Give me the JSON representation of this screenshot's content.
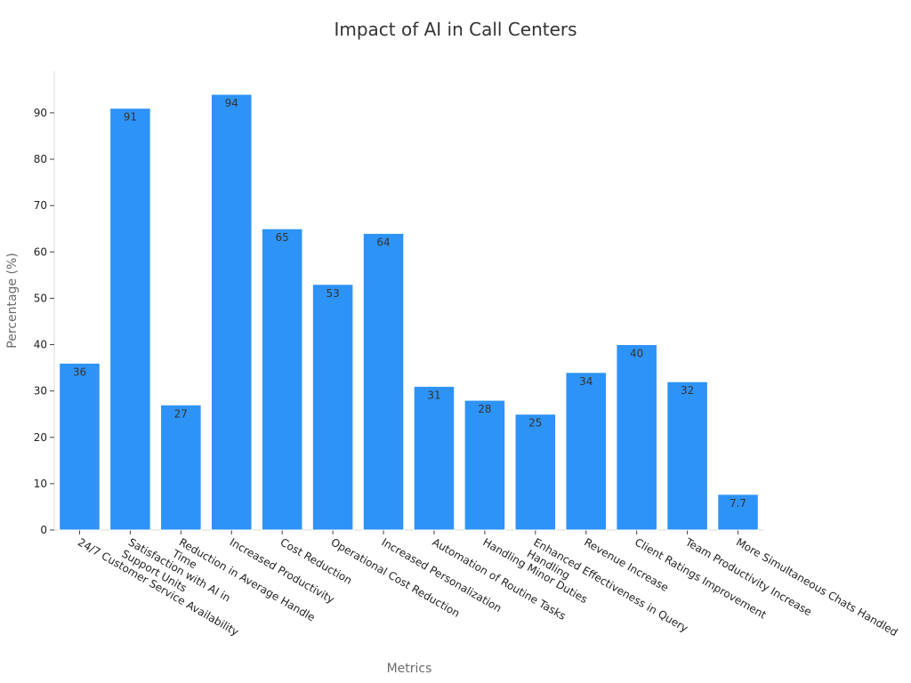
{
  "chart_data": {
    "type": "bar",
    "title": "Impact of AI in Call Centers",
    "xlabel": "Metrics",
    "ylabel": "Percentage (%)",
    "ylim": [
      0,
      99
    ],
    "yticks": [
      0,
      10,
      20,
      30,
      40,
      50,
      60,
      70,
      80,
      90
    ],
    "grid": false,
    "color": "#2e93f7",
    "categories": [
      [
        "24/7 Customer Service Availability"
      ],
      [
        "Satisfaction with AI in",
        "Support Units"
      ],
      [
        "Reduction in Average Handle",
        "Time"
      ],
      [
        "Increased Productivity"
      ],
      [
        "Cost Reduction"
      ],
      [
        "Operational Cost Reduction"
      ],
      [
        "Increased Personalization"
      ],
      [
        "Automation of Routine Tasks"
      ],
      [
        "Handling Minor Duties"
      ],
      [
        "Enhanced Effectiveness in Query",
        "Handling"
      ],
      [
        "Revenue Increase"
      ],
      [
        "Client Ratings Improvement"
      ],
      [
        "Team Productivity Increase"
      ],
      [
        "More Simultaneous Chats Handled"
      ]
    ],
    "values": [
      36,
      91,
      27,
      94,
      65,
      53,
      64,
      31,
      28,
      25,
      34,
      40,
      32,
      7.7
    ]
  }
}
